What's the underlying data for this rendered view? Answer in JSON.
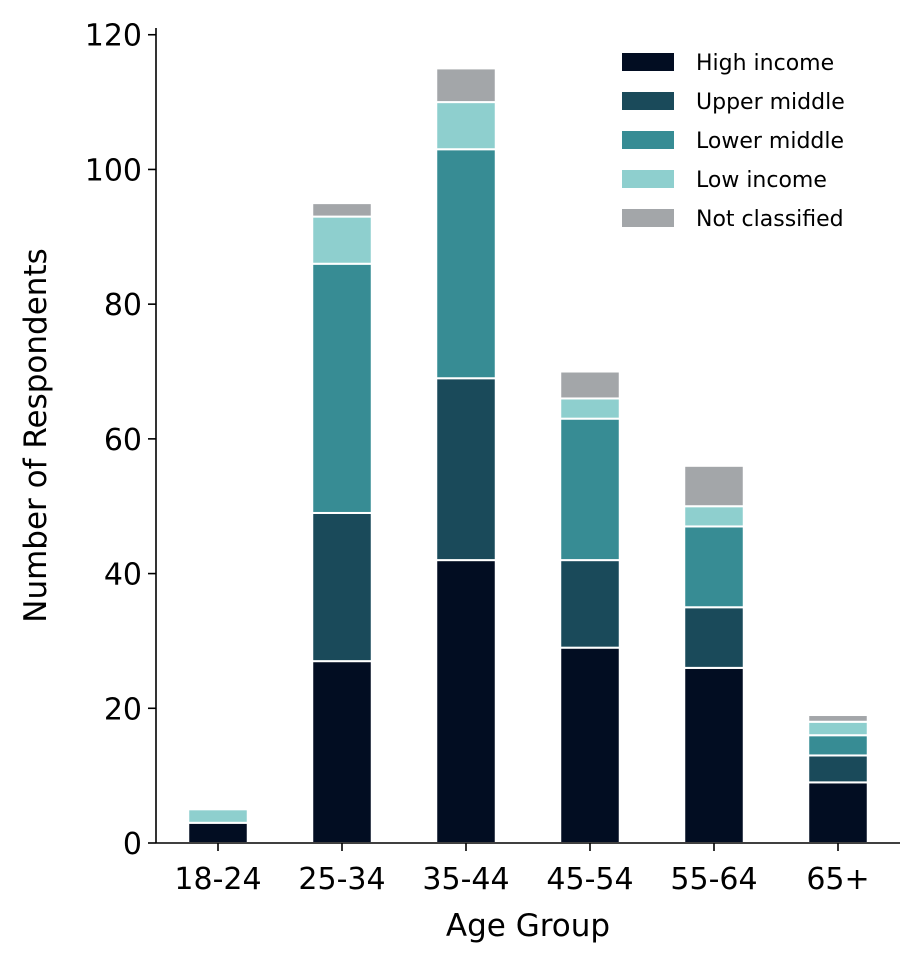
{
  "chart_data": {
    "type": "bar",
    "stacked": true,
    "categories": [
      "18-24",
      "25-34",
      "35-44",
      "45-54",
      "55-64",
      "65+"
    ],
    "series": [
      {
        "name": "High income",
        "color": "#020d22",
        "values": [
          3,
          27,
          42,
          29,
          26,
          9
        ]
      },
      {
        "name": "Upper middle",
        "color": "#1a4a5a",
        "values": [
          0,
          22,
          27,
          13,
          9,
          4
        ]
      },
      {
        "name": "Lower middle",
        "color": "#378c94",
        "values": [
          0,
          37,
          34,
          21,
          12,
          3
        ]
      },
      {
        "name": "Low income",
        "color": "#8ecfce",
        "values": [
          2,
          7,
          7,
          3,
          3,
          2
        ]
      },
      {
        "name": "Not classified",
        "color": "#a3a6a9",
        "values": [
          0,
          2,
          5,
          4,
          6,
          1
        ]
      }
    ],
    "xlabel": "Age Group",
    "ylabel": "Number of Respondents",
    "ylim": [
      0,
      121
    ],
    "yticks": [
      0,
      20,
      40,
      60,
      80,
      100,
      120
    ],
    "grid": false,
    "legend_position": "top-right"
  }
}
